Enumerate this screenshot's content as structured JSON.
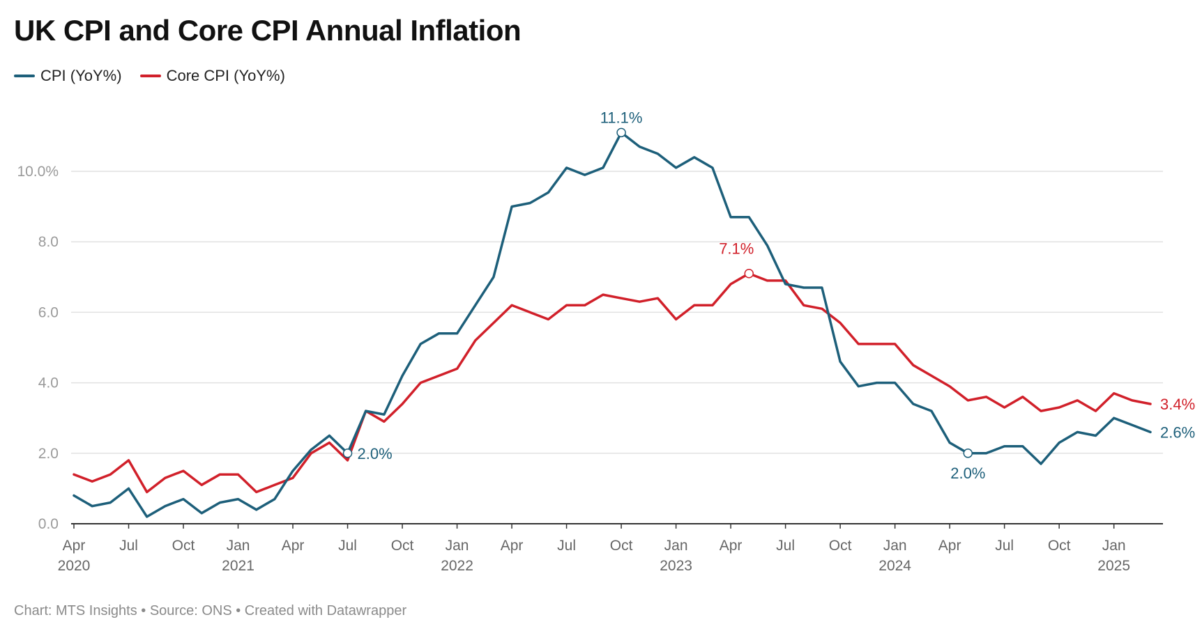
{
  "title": "UK CPI and Core CPI Annual Inflation",
  "footer": "Chart: MTS Insights • Source: ONS • Created with Datawrapper",
  "colors": {
    "cpi": "#1d5f7a",
    "core": "#d1202a"
  },
  "legend": [
    {
      "label": "CPI (YoY%)",
      "color": "#1d5f7a"
    },
    {
      "label": "Core CPI (YoY%)",
      "color": "#d1202a"
    }
  ],
  "chart_data": {
    "type": "line",
    "title": "UK CPI and Core CPI Annual Inflation",
    "xlabel": "",
    "ylabel": "",
    "ylim": [
      0,
      11.5
    ],
    "y_ticks": [
      {
        "value": 0,
        "label": "0.0"
      },
      {
        "value": 2,
        "label": "2.0"
      },
      {
        "value": 4,
        "label": "4.0"
      },
      {
        "value": 6,
        "label": "6.0"
      },
      {
        "value": 8,
        "label": "8.0"
      },
      {
        "value": 10,
        "label": "10.0%"
      }
    ],
    "x_ticks": [
      {
        "index": 0,
        "month": "Apr",
        "year": "2020"
      },
      {
        "index": 3,
        "month": "Jul",
        "year": ""
      },
      {
        "index": 6,
        "month": "Oct",
        "year": ""
      },
      {
        "index": 9,
        "month": "Jan",
        "year": "2021"
      },
      {
        "index": 12,
        "month": "Apr",
        "year": ""
      },
      {
        "index": 15,
        "month": "Jul",
        "year": ""
      },
      {
        "index": 18,
        "month": "Oct",
        "year": ""
      },
      {
        "index": 21,
        "month": "Jan",
        "year": "2022"
      },
      {
        "index": 24,
        "month": "Apr",
        "year": ""
      },
      {
        "index": 27,
        "month": "Jul",
        "year": ""
      },
      {
        "index": 30,
        "month": "Oct",
        "year": ""
      },
      {
        "index": 33,
        "month": "Jan",
        "year": "2023"
      },
      {
        "index": 36,
        "month": "Apr",
        "year": ""
      },
      {
        "index": 39,
        "month": "Jul",
        "year": ""
      },
      {
        "index": 42,
        "month": "Oct",
        "year": ""
      },
      {
        "index": 45,
        "month": "Jan",
        "year": "2024"
      },
      {
        "index": 48,
        "month": "Apr",
        "year": ""
      },
      {
        "index": 51,
        "month": "Jul",
        "year": ""
      },
      {
        "index": 54,
        "month": "Oct",
        "year": ""
      },
      {
        "index": 57,
        "month": "Jan",
        "year": "2025"
      }
    ],
    "x_start": "Apr 2020",
    "x_end": "May 2025",
    "series": [
      {
        "name": "CPI (YoY%)",
        "values": [
          0.8,
          0.5,
          0.6,
          1.0,
          0.2,
          0.5,
          0.7,
          0.3,
          0.6,
          0.7,
          0.4,
          0.7,
          1.5,
          2.1,
          2.5,
          2.0,
          3.2,
          3.1,
          4.2,
          5.1,
          5.4,
          5.4,
          6.2,
          7.0,
          9.0,
          9.1,
          9.4,
          10.1,
          9.9,
          10.1,
          11.1,
          10.7,
          10.5,
          10.1,
          10.4,
          10.1,
          8.7,
          8.7,
          7.9,
          6.8,
          6.7,
          6.7,
          4.6,
          3.9,
          4.0,
          4.0,
          3.4,
          3.2,
          2.3,
          2.0,
          2.0,
          2.2,
          2.2,
          1.7,
          2.3,
          2.6,
          2.5,
          3.0,
          2.8,
          2.6
        ],
        "annotations": [
          {
            "index": 15,
            "label": "2.0%",
            "marker": true,
            "placement": "right"
          },
          {
            "index": 30,
            "label": "11.1%",
            "marker": true,
            "placement": "above"
          },
          {
            "index": 49,
            "label": "2.0%",
            "marker": true,
            "placement": "below"
          },
          {
            "index": 59,
            "label": "2.6%",
            "marker": false,
            "placement": "right"
          }
        ]
      },
      {
        "name": "Core CPI (YoY%)",
        "values": [
          1.4,
          1.2,
          1.4,
          1.8,
          0.9,
          1.3,
          1.5,
          1.1,
          1.4,
          1.4,
          0.9,
          1.1,
          1.3,
          2.0,
          2.3,
          1.8,
          3.2,
          2.9,
          3.4,
          4.0,
          4.2,
          4.4,
          5.2,
          5.7,
          6.2,
          6.0,
          5.8,
          6.2,
          6.2,
          6.5,
          6.4,
          6.3,
          6.4,
          5.8,
          6.2,
          6.2,
          6.8,
          7.1,
          6.9,
          6.9,
          6.2,
          6.1,
          5.7,
          5.1,
          5.1,
          5.1,
          4.5,
          4.2,
          3.9,
          3.5,
          3.6,
          3.3,
          3.6,
          3.2,
          3.3,
          3.5,
          3.2,
          3.7,
          3.5,
          3.4
        ],
        "annotations": [
          {
            "index": 37,
            "label": "7.1%",
            "marker": true,
            "placement": "above-left"
          },
          {
            "index": 59,
            "label": "3.4%",
            "marker": false,
            "placement": "right"
          }
        ]
      }
    ]
  }
}
